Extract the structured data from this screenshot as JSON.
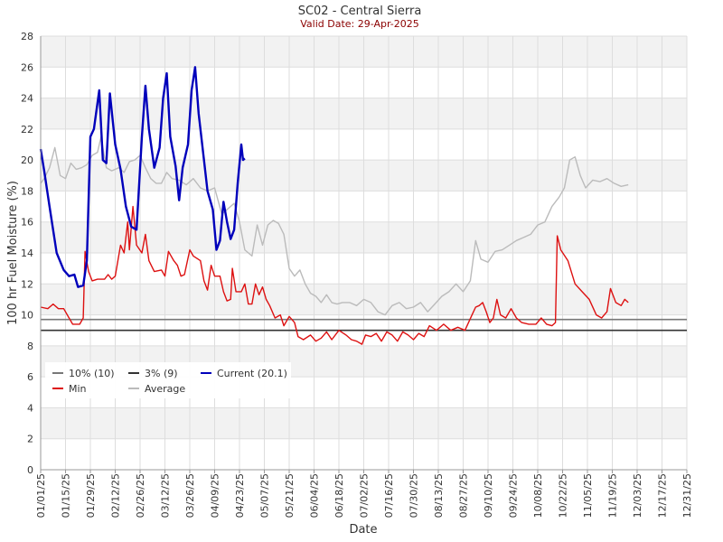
{
  "chart_data": {
    "type": "line",
    "title": "SC02 - Central Sierra",
    "subtitle": "Valid Date: 29-Apr-2025",
    "xlabel": "Date",
    "ylabel": "100 hr Fuel Moisture (%)",
    "ylim": [
      0,
      28
    ],
    "yticks": [
      0,
      2,
      4,
      6,
      8,
      10,
      12,
      14,
      16,
      18,
      20,
      22,
      24,
      26,
      28
    ],
    "xlim": [
      "01/01/25",
      "12/31/25"
    ],
    "xticks": [
      "01/01/25",
      "01/15/25",
      "01/29/25",
      "02/12/25",
      "02/26/25",
      "03/12/25",
      "03/26/25",
      "04/09/25",
      "04/23/25",
      "05/07/25",
      "05/21/25",
      "06/04/25",
      "06/18/25",
      "07/02/25",
      "07/16/25",
      "07/30/25",
      "08/13/25",
      "08/27/25",
      "09/10/25",
      "09/24/25",
      "10/08/25",
      "10/22/25",
      "11/05/25",
      "11/19/25",
      "12/03/25",
      "12/17/25",
      "12/31/25"
    ],
    "grid": true,
    "legend_position": "bottom-left",
    "reference_lines": [
      {
        "name": "10% (10)",
        "value": 9.7,
        "color": "#777777"
      },
      {
        "name": "3% (9)",
        "value": 9.0,
        "color": "#333333"
      }
    ],
    "series": [
      {
        "name": "Min",
        "color": "#dd1111",
        "points": [
          [
            "01/01/25",
            10.5
          ],
          [
            "01/05/25",
            10.4
          ],
          [
            "01/08/25",
            10.7
          ],
          [
            "01/11/25",
            10.4
          ],
          [
            "01/14/25",
            10.4
          ],
          [
            "01/17/25",
            9.8
          ],
          [
            "01/19/25",
            9.4
          ],
          [
            "01/23/25",
            9.4
          ],
          [
            "01/25/25",
            9.8
          ],
          [
            "01/26/25",
            14.1
          ],
          [
            "01/28/25",
            12.8
          ],
          [
            "01/30/25",
            12.2
          ],
          [
            "02/02/25",
            12.3
          ],
          [
            "02/06/25",
            12.3
          ],
          [
            "02/08/25",
            12.6
          ],
          [
            "02/10/25",
            12.3
          ],
          [
            "02/12/25",
            12.5
          ],
          [
            "02/15/25",
            14.5
          ],
          [
            "02/17/25",
            14.0
          ],
          [
            "02/19/25",
            16.0
          ],
          [
            "02/20/25",
            14.2
          ],
          [
            "02/22/25",
            17.0
          ],
          [
            "02/24/25",
            14.5
          ],
          [
            "02/27/25",
            14.0
          ],
          [
            "03/01/25",
            15.2
          ],
          [
            "03/03/25",
            13.5
          ],
          [
            "03/06/25",
            12.8
          ],
          [
            "03/10/25",
            12.9
          ],
          [
            "03/12/25",
            12.5
          ],
          [
            "03/14/25",
            14.1
          ],
          [
            "03/17/25",
            13.5
          ],
          [
            "03/19/25",
            13.2
          ],
          [
            "03/21/25",
            12.5
          ],
          [
            "03/23/25",
            12.6
          ],
          [
            "03/26/25",
            14.2
          ],
          [
            "03/28/25",
            13.8
          ],
          [
            "04/01/25",
            13.5
          ],
          [
            "04/03/25",
            12.2
          ],
          [
            "04/05/25",
            11.6
          ],
          [
            "04/07/25",
            13.2
          ],
          [
            "04/09/25",
            12.5
          ],
          [
            "04/12/25",
            12.5
          ],
          [
            "04/14/25",
            11.5
          ],
          [
            "04/16/25",
            10.9
          ],
          [
            "04/18/25",
            11.0
          ],
          [
            "04/19/25",
            13.0
          ],
          [
            "04/21/25",
            11.5
          ],
          [
            "04/24/25",
            11.5
          ],
          [
            "04/26/25",
            12.0
          ],
          [
            "04/28/25",
            10.7
          ],
          [
            "04/30/25",
            10.7
          ],
          [
            "05/02/25",
            12.0
          ],
          [
            "05/04/25",
            11.3
          ],
          [
            "05/06/25",
            11.8
          ],
          [
            "05/08/25",
            11.0
          ],
          [
            "05/10/25",
            10.6
          ],
          [
            "05/13/25",
            9.8
          ],
          [
            "05/16/25",
            10.0
          ],
          [
            "05/18/25",
            9.3
          ],
          [
            "05/21/25",
            9.9
          ],
          [
            "05/24/25",
            9.5
          ],
          [
            "05/26/25",
            8.6
          ],
          [
            "05/29/25",
            8.4
          ],
          [
            "06/02/25",
            8.7
          ],
          [
            "06/05/25",
            8.3
          ],
          [
            "06/08/25",
            8.5
          ],
          [
            "06/11/25",
            8.9
          ],
          [
            "06/14/25",
            8.4
          ],
          [
            "06/18/25",
            9.0
          ],
          [
            "06/22/25",
            8.7
          ],
          [
            "06/25/25",
            8.4
          ],
          [
            "06/28/25",
            8.3
          ],
          [
            "07/01/25",
            8.1
          ],
          [
            "07/03/25",
            8.7
          ],
          [
            "07/06/25",
            8.6
          ],
          [
            "07/09/25",
            8.8
          ],
          [
            "07/12/25",
            8.3
          ],
          [
            "07/15/25",
            8.9
          ],
          [
            "07/18/25",
            8.7
          ],
          [
            "07/21/25",
            8.3
          ],
          [
            "07/24/25",
            8.9
          ],
          [
            "07/27/25",
            8.7
          ],
          [
            "07/30/25",
            8.4
          ],
          [
            "08/02/25",
            8.8
          ],
          [
            "08/05/25",
            8.6
          ],
          [
            "08/08/25",
            9.3
          ],
          [
            "08/12/25",
            9.0
          ],
          [
            "08/16/25",
            9.4
          ],
          [
            "08/20/25",
            9.0
          ],
          [
            "08/24/25",
            9.2
          ],
          [
            "08/28/25",
            9.0
          ],
          [
            "09/01/25",
            10.0
          ],
          [
            "09/03/25",
            10.5
          ],
          [
            "09/05/25",
            10.6
          ],
          [
            "09/07/25",
            10.8
          ],
          [
            "09/09/25",
            10.2
          ],
          [
            "09/11/25",
            9.5
          ],
          [
            "09/13/25",
            9.8
          ],
          [
            "09/15/25",
            11.0
          ],
          [
            "09/17/25",
            10.0
          ],
          [
            "09/20/25",
            9.8
          ],
          [
            "09/23/25",
            10.4
          ],
          [
            "09/26/25",
            9.8
          ],
          [
            "09/29/25",
            9.5
          ],
          [
            "10/03/25",
            9.4
          ],
          [
            "10/07/25",
            9.4
          ],
          [
            "10/10/25",
            9.8
          ],
          [
            "10/13/25",
            9.4
          ],
          [
            "10/16/25",
            9.3
          ],
          [
            "10/18/25",
            9.5
          ],
          [
            "10/19/25",
            15.1
          ],
          [
            "10/21/25",
            14.2
          ],
          [
            "10/25/25",
            13.5
          ],
          [
            "10/29/25",
            12.0
          ],
          [
            "11/02/25",
            11.5
          ],
          [
            "11/06/25",
            11.0
          ],
          [
            "11/10/25",
            10.0
          ],
          [
            "11/13/25",
            9.8
          ],
          [
            "11/16/25",
            10.2
          ],
          [
            "11/18/25",
            11.7
          ],
          [
            "11/21/25",
            10.8
          ],
          [
            "11/24/25",
            10.6
          ],
          [
            "11/26/25",
            11.0
          ],
          [
            "11/28/25",
            10.8
          ]
        ]
      },
      {
        "name": "Average",
        "color": "#bbbbbb",
        "points": [
          [
            "01/01/25",
            18.5
          ],
          [
            "01/03/25",
            18.8
          ],
          [
            "01/06/25",
            19.5
          ],
          [
            "01/09/25",
            20.8
          ],
          [
            "01/12/25",
            19.0
          ],
          [
            "01/15/25",
            18.8
          ],
          [
            "01/18/25",
            19.8
          ],
          [
            "01/21/25",
            19.4
          ],
          [
            "01/24/25",
            19.5
          ],
          [
            "01/27/25",
            19.7
          ],
          [
            "01/30/25",
            20.3
          ],
          [
            "02/02/25",
            20.5
          ],
          [
            "02/04/25",
            21.5
          ],
          [
            "02/07/25",
            19.5
          ],
          [
            "02/10/25",
            19.3
          ],
          [
            "02/14/25",
            19.5
          ],
          [
            "02/17/25",
            19.2
          ],
          [
            "02/20/25",
            19.9
          ],
          [
            "02/23/25",
            20.0
          ],
          [
            "02/26/25",
            20.3
          ],
          [
            "03/01/25",
            19.5
          ],
          [
            "03/04/25",
            18.8
          ],
          [
            "03/07/25",
            18.5
          ],
          [
            "03/10/25",
            18.5
          ],
          [
            "03/13/25",
            19.2
          ],
          [
            "03/16/25",
            18.8
          ],
          [
            "03/20/25",
            18.7
          ],
          [
            "03/24/25",
            18.4
          ],
          [
            "03/28/25",
            18.8
          ],
          [
            "04/01/25",
            18.2
          ],
          [
            "04/05/25",
            18.0
          ],
          [
            "04/09/25",
            18.2
          ],
          [
            "04/13/25",
            16.5
          ],
          [
            "04/16/25",
            16.8
          ],
          [
            "04/20/25",
            17.2
          ],
          [
            "04/23/25",
            16.0
          ],
          [
            "04/26/25",
            14.2
          ],
          [
            "04/30/25",
            13.8
          ],
          [
            "05/03/25",
            15.8
          ],
          [
            "05/06/25",
            14.5
          ],
          [
            "05/09/25",
            15.8
          ],
          [
            "05/12/25",
            16.1
          ],
          [
            "05/15/25",
            15.9
          ],
          [
            "05/18/25",
            15.2
          ],
          [
            "05/21/25",
            13.0
          ],
          [
            "05/24/25",
            12.5
          ],
          [
            "05/27/25",
            12.9
          ],
          [
            "05/30/25",
            12.0
          ],
          [
            "06/02/25",
            11.4
          ],
          [
            "06/05/25",
            11.2
          ],
          [
            "06/08/25",
            10.8
          ],
          [
            "06/11/25",
            11.3
          ],
          [
            "06/14/25",
            10.8
          ],
          [
            "06/17/25",
            10.7
          ],
          [
            "06/20/25",
            10.8
          ],
          [
            "06/24/25",
            10.8
          ],
          [
            "06/28/25",
            10.6
          ],
          [
            "07/02/25",
            11.0
          ],
          [
            "07/06/25",
            10.8
          ],
          [
            "07/10/25",
            10.2
          ],
          [
            "07/14/25",
            10.0
          ],
          [
            "07/18/25",
            10.6
          ],
          [
            "07/22/25",
            10.8
          ],
          [
            "07/26/25",
            10.4
          ],
          [
            "07/30/25",
            10.5
          ],
          [
            "08/03/25",
            10.8
          ],
          [
            "08/07/25",
            10.2
          ],
          [
            "08/11/25",
            10.7
          ],
          [
            "08/15/25",
            11.2
          ],
          [
            "08/19/25",
            11.5
          ],
          [
            "08/23/25",
            12.0
          ],
          [
            "08/27/25",
            11.5
          ],
          [
            "08/31/25",
            12.2
          ],
          [
            "09/03/25",
            14.8
          ],
          [
            "09/06/25",
            13.6
          ],
          [
            "09/10/25",
            13.4
          ],
          [
            "09/14/25",
            14.1
          ],
          [
            "09/18/25",
            14.2
          ],
          [
            "09/22/25",
            14.5
          ],
          [
            "09/26/25",
            14.8
          ],
          [
            "09/30/25",
            15.0
          ],
          [
            "10/04/25",
            15.2
          ],
          [
            "10/08/25",
            15.8
          ],
          [
            "10/12/25",
            16.0
          ],
          [
            "10/16/25",
            17.0
          ],
          [
            "10/20/25",
            17.6
          ],
          [
            "10/23/25",
            18.2
          ],
          [
            "10/26/25",
            20.0
          ],
          [
            "10/29/25",
            20.2
          ],
          [
            "11/01/25",
            19.0
          ],
          [
            "11/04/25",
            18.2
          ],
          [
            "11/08/25",
            18.7
          ],
          [
            "11/12/25",
            18.6
          ],
          [
            "11/16/25",
            18.8
          ],
          [
            "11/20/25",
            18.5
          ],
          [
            "11/24/25",
            18.3
          ],
          [
            "11/28/25",
            18.4
          ]
        ]
      },
      {
        "name": "Current (20.1)",
        "color": "#0000bb",
        "points": [
          [
            "01/01/25",
            20.7
          ],
          [
            "01/03/25",
            19.3
          ],
          [
            "01/06/25",
            17.0
          ],
          [
            "01/10/25",
            14.0
          ],
          [
            "01/14/25",
            12.9
          ],
          [
            "01/17/25",
            12.5
          ],
          [
            "01/20/25",
            12.6
          ],
          [
            "01/22/25",
            11.8
          ],
          [
            "01/25/25",
            11.9
          ],
          [
            "01/27/25",
            13.5
          ],
          [
            "01/29/25",
            21.5
          ],
          [
            "01/31/25",
            22.0
          ],
          [
            "02/03/25",
            24.5
          ],
          [
            "02/05/25",
            20.0
          ],
          [
            "02/07/25",
            19.8
          ],
          [
            "02/09/25",
            24.3
          ],
          [
            "02/12/25",
            21.0
          ],
          [
            "02/15/25",
            19.4
          ],
          [
            "02/18/25",
            17.0
          ],
          [
            "02/21/25",
            15.7
          ],
          [
            "02/24/25",
            15.5
          ],
          [
            "02/27/25",
            21.5
          ],
          [
            "03/01/25",
            24.8
          ],
          [
            "03/03/25",
            22.0
          ],
          [
            "03/06/25",
            19.5
          ],
          [
            "03/09/25",
            20.8
          ],
          [
            "03/11/25",
            24.0
          ],
          [
            "03/13/25",
            25.6
          ],
          [
            "03/15/25",
            21.5
          ],
          [
            "03/18/25",
            19.6
          ],
          [
            "03/20/25",
            17.4
          ],
          [
            "03/22/25",
            19.5
          ],
          [
            "03/25/25",
            21.0
          ],
          [
            "03/27/25",
            24.5
          ],
          [
            "03/29/25",
            26.0
          ],
          [
            "03/31/25",
            23.0
          ],
          [
            "04/03/25",
            20.0
          ],
          [
            "04/05/25",
            18.0
          ],
          [
            "04/08/25",
            16.8
          ],
          [
            "04/10/25",
            14.2
          ],
          [
            "04/12/25",
            14.8
          ],
          [
            "04/14/25",
            17.3
          ],
          [
            "04/16/25",
            16.0
          ],
          [
            "04/18/25",
            14.9
          ],
          [
            "04/20/25",
            15.5
          ],
          [
            "04/22/25",
            18.5
          ],
          [
            "04/24/25",
            21.0
          ],
          [
            "04/25/25",
            20.0
          ],
          [
            "04/26/25",
            20.1
          ]
        ]
      }
    ]
  }
}
